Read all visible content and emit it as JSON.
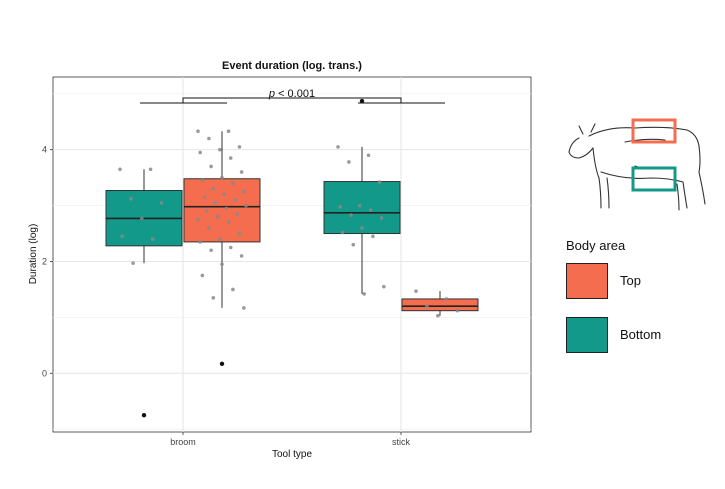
{
  "colors": {
    "top": "#F46D4F",
    "bottom": "#12998A"
  },
  "annotation": {
    "p_label_p": "p",
    "p_label_rest": " < 0.001"
  },
  "legend": {
    "title": "Body area",
    "items": [
      {
        "label": "Top",
        "color": "#F46D4F"
      },
      {
        "label": "Bottom",
        "color": "#12998A"
      }
    ]
  },
  "illustration": {
    "name": "cow-body-areas-icon"
  },
  "chart_data": {
    "type": "boxplot",
    "title": "Event duration (log. trans.)",
    "xlabel": "Tool type",
    "ylabel": "Duration (log)",
    "categories": [
      "broom",
      "stick"
    ],
    "ylim": [
      -1.05,
      5.3
    ],
    "yticks": [
      0,
      2,
      4
    ],
    "grid": true,
    "series": [
      {
        "name": "Bottom",
        "boxes": [
          {
            "category": "broom",
            "q1": 2.28,
            "median": 2.77,
            "q3": 3.27,
            "whisker_low": 1.97,
            "whisker_high": 3.65,
            "outliers": [
              -0.75
            ],
            "points": [
              3.65,
              3.65,
              3.12,
              3.05,
              2.77,
              2.45,
              2.4,
              1.97
            ]
          },
          {
            "category": "stick",
            "q1": 2.5,
            "median": 2.87,
            "q3": 3.43,
            "whisker_low": 1.42,
            "whisker_high": 4.05,
            "outliers": [
              4.87
            ],
            "points": [
              4.05,
              3.9,
              3.78,
              3.42,
              3.0,
              2.98,
              2.92,
              2.83,
              2.78,
              2.6,
              2.52,
              2.45,
              2.3,
              1.55,
              1.42
            ]
          }
        ]
      },
      {
        "name": "Top",
        "boxes": [
          {
            "category": "broom",
            "q1": 2.35,
            "median": 2.98,
            "q3": 3.48,
            "whisker_low": 1.17,
            "whisker_high": 4.33,
            "outliers": [
              0.17
            ],
            "points": [
              4.33,
              4.33,
              4.2,
              4.05,
              4.0,
              3.95,
              3.85,
              3.7,
              3.6,
              3.5,
              3.45,
              3.4,
              3.3,
              3.25,
              3.2,
              3.15,
              3.1,
              3.05,
              3.0,
              2.95,
              2.9,
              2.85,
              2.8,
              2.75,
              2.7,
              2.6,
              2.5,
              2.4,
              2.35,
              2.25,
              2.2,
              2.1,
              1.95,
              1.75,
              1.5,
              1.35,
              1.17
            ]
          },
          {
            "category": "stick",
            "q1": 1.12,
            "median": 1.2,
            "q3": 1.33,
            "whisker_low": 1.03,
            "whisker_high": 1.47,
            "outliers": [],
            "points": [
              1.47,
              1.33,
              1.2,
              1.12,
              1.03
            ]
          }
        ]
      }
    ]
  }
}
